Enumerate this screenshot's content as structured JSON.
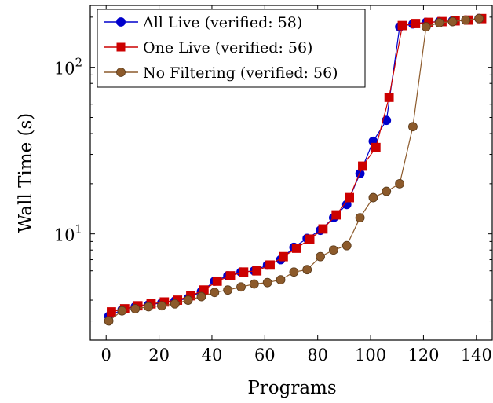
{
  "chart_data": {
    "type": "line",
    "title": "",
    "xlabel": "Programs",
    "ylabel": "Wall Time (s)",
    "xlim": [
      -6,
      146
    ],
    "ylim": [
      2.3,
      235
    ],
    "yscale": "log",
    "x_ticks": [
      0,
      20,
      40,
      60,
      80,
      100,
      120,
      140
    ],
    "y_ticks": [
      {
        "value": 10,
        "base": "10",
        "exp": "1"
      },
      {
        "value": 100,
        "base": "10",
        "exp": "2"
      }
    ],
    "grid": false,
    "legend_position": "top-left",
    "series": [
      {
        "name": "All Live (verified: 58)",
        "color": "#0000cc",
        "marker": "circle",
        "x": [
          1,
          6,
          11,
          16,
          21,
          26,
          31,
          36,
          41,
          46,
          51,
          56,
          61,
          66,
          71,
          76,
          81,
          86,
          91,
          96,
          101,
          106,
          111,
          116,
          121,
          126,
          131,
          136,
          141
        ],
        "y": [
          3.2,
          3.5,
          3.65,
          3.75,
          3.85,
          3.95,
          4.1,
          4.5,
          5.2,
          5.6,
          5.9,
          6.0,
          6.5,
          7.0,
          8.3,
          9.4,
          10.5,
          12.5,
          15.0,
          23.0,
          36.0,
          48.0,
          175.0,
          182.0,
          186.0,
          188.0,
          190.0,
          192.0,
          196.0
        ]
      },
      {
        "name": "One Live (verified: 56)",
        "color": "#cc0000",
        "marker": "square",
        "x": [
          2,
          7,
          12,
          17,
          22,
          27,
          32,
          37,
          42,
          47,
          52,
          57,
          62,
          67,
          72,
          77,
          82,
          87,
          92,
          97,
          102,
          107,
          112,
          117,
          122,
          127,
          132,
          137,
          142
        ],
        "y": [
          3.4,
          3.55,
          3.7,
          3.8,
          3.9,
          4.0,
          4.25,
          4.6,
          5.2,
          5.6,
          5.9,
          6.0,
          6.5,
          7.3,
          8.2,
          9.3,
          10.7,
          13.0,
          16.5,
          25.5,
          33.0,
          66.0,
          178.0,
          183.0,
          186.0,
          188.0,
          190.0,
          192.0,
          196.0
        ]
      },
      {
        "name": "No Filtering (verified: 56)",
        "color": "#8c5a2b",
        "marker": "circle",
        "x": [
          1,
          6,
          11,
          16,
          21,
          26,
          31,
          36,
          41,
          46,
          51,
          56,
          61,
          66,
          71,
          76,
          81,
          86,
          91,
          96,
          101,
          106,
          111,
          116,
          121,
          126,
          131,
          136,
          141
        ],
        "y": [
          3.0,
          3.45,
          3.55,
          3.65,
          3.7,
          3.8,
          4.0,
          4.2,
          4.45,
          4.6,
          4.8,
          5.0,
          5.1,
          5.3,
          5.9,
          6.1,
          7.3,
          8.0,
          8.5,
          12.5,
          16.5,
          18.0,
          20.0,
          44.0,
          175.0,
          185.0,
          188.0,
          192.0,
          196.0
        ]
      }
    ]
  }
}
